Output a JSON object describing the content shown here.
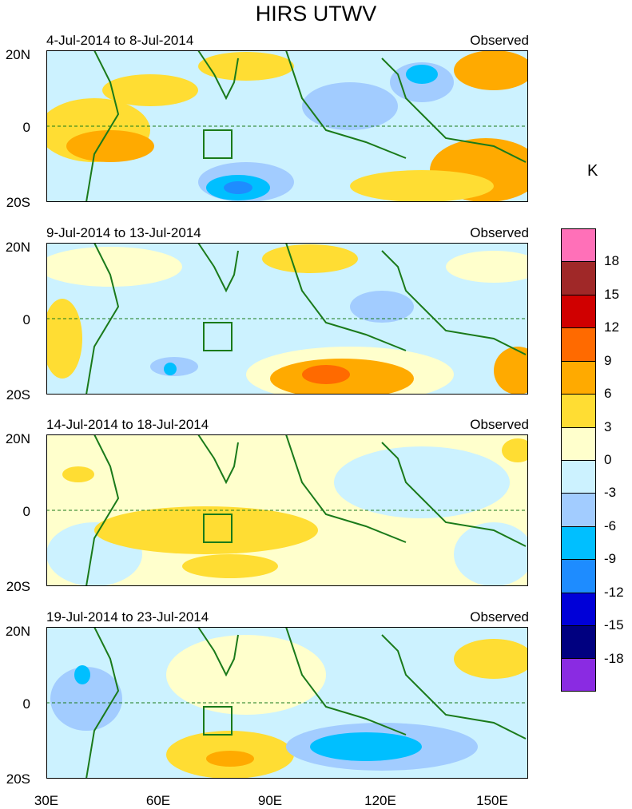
{
  "title": "HIRS UTWV",
  "unit": "K",
  "panels": [
    {
      "period": "4-Jul-2014 to 8-Jul-2014",
      "source": "Observed"
    },
    {
      "period": "9-Jul-2014 to 13-Jul-2014",
      "source": "Observed"
    },
    {
      "period": "14-Jul-2014 to 18-Jul-2014",
      "source": "Observed"
    },
    {
      "period": "19-Jul-2014 to 23-Jul-2014",
      "source": "Observed"
    }
  ],
  "y_axis": {
    "north": "20N",
    "equator": "0",
    "south": "20S"
  },
  "x_axis": [
    "30E",
    "60E",
    "90E",
    "120E",
    "150E"
  ],
  "colorbar": {
    "labels": [
      "18",
      "15",
      "12",
      "9",
      "6",
      "3",
      "0",
      "-3",
      "-6",
      "-9",
      "-12",
      "-15",
      "-18"
    ],
    "colors": [
      "#ff70b8",
      "#a02828",
      "#d00000",
      "#ff6a00",
      "#ffaa00",
      "#ffdd33",
      "#ffffcc",
      "#ccf2ff",
      "#a2ccff",
      "#00bfff",
      "#1e8cff",
      "#0000d8",
      "#000080",
      "#8a2be2"
    ]
  },
  "boundary_color": "#1a7a1a"
}
